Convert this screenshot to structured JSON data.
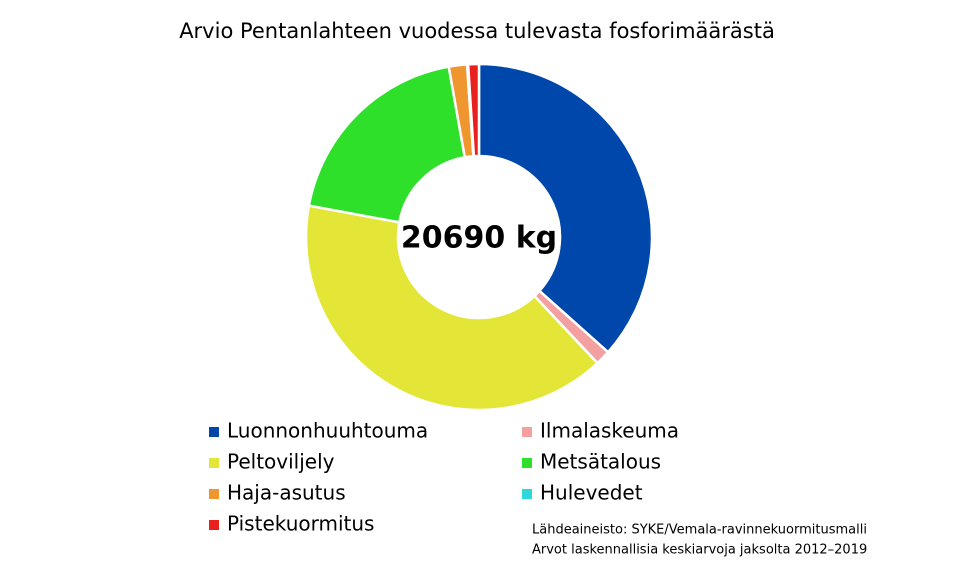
{
  "chart_data": {
    "type": "donut",
    "title": "Arvio Pentanlahteen vuodessa tulevasta fosforimäärästä",
    "center_label": "20690 kg",
    "series": [
      {
        "name": "Luonnonhuuhtouma",
        "color": "#0047ab",
        "values": [
          36.6
        ]
      },
      {
        "name": "Ilmalaskeuma",
        "color": "#f4a0a0",
        "values": [
          1.4
        ]
      },
      {
        "name": "Peltoviljely",
        "color": "#e3e636",
        "values": [
          39.9
        ]
      },
      {
        "name": "Metsätalous",
        "color": "#2ee02a",
        "values": [
          19.3
        ]
      },
      {
        "name": "Haja-asutus",
        "color": "#f0962e",
        "values": [
          1.7
        ]
      },
      {
        "name": "Hulevedet",
        "color": "#2ed8d8",
        "values": [
          0.1
        ]
      },
      {
        "name": "Pistekuormitus",
        "color": "#e8201e",
        "values": [
          1.0
        ]
      }
    ],
    "notes": [
      "Lähdeaineisto: SYKE/Vemala-ravinnekuormitusmalli",
      "Arvot laskennallisia keskiarvoja jaksolta 2012–2019"
    ]
  }
}
